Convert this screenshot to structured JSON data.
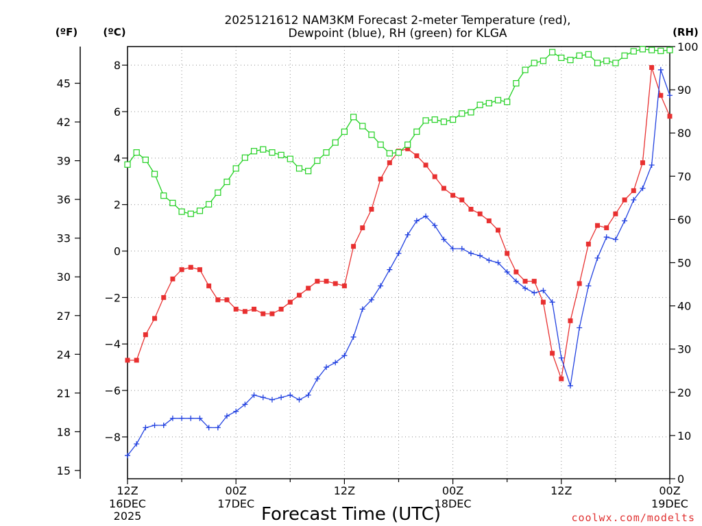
{
  "chart_data": {
    "type": "line",
    "title_line1": "2025121612 NAM3KM Forecast 2-meter Temperature (red),",
    "title_line2": "Dewpoint (blue), RH (green) for KLGA",
    "xlabel": "Forecast Time (UTC)",
    "credit": "coolwx.com/modelts",
    "units": {
      "fahrenheit": "(ºF)",
      "celsius": "(ºC)",
      "rh": "(RH)"
    },
    "x_hours_range": [
      0,
      60
    ],
    "celsius_range": [
      -9.8,
      8.8
    ],
    "rh_range": [
      0,
      100
    ],
    "celsius_ticks": [
      "8",
      "6",
      "4",
      "2",
      "0",
      "−2",
      "−4",
      "−6",
      "−8"
    ],
    "celsius_tick_values": [
      8,
      6,
      4,
      2,
      0,
      -2,
      -4,
      -6,
      -8
    ],
    "fahrenheit_ticks": [
      "45",
      "42",
      "39",
      "36",
      "33",
      "30",
      "27",
      "24",
      "21",
      "18",
      "15"
    ],
    "fahrenheit_tick_values": [
      45,
      42,
      39,
      36,
      33,
      30,
      27,
      24,
      21,
      18,
      15
    ],
    "rh_ticks": [
      "100",
      "90",
      "80",
      "70",
      "60",
      "50",
      "40",
      "30",
      "20",
      "10",
      "0"
    ],
    "rh_tick_values": [
      100,
      90,
      80,
      70,
      60,
      50,
      40,
      30,
      20,
      10,
      0
    ],
    "x_ticks": [
      {
        "hour": 0,
        "line1": "12Z",
        "line2": "16DEC",
        "line3": "2025"
      },
      {
        "hour": 12,
        "line1": "00Z",
        "line2": "17DEC",
        "line3": ""
      },
      {
        "hour": 24,
        "line1": "12Z",
        "line2": "",
        "line3": ""
      },
      {
        "hour": 36,
        "line1": "00Z",
        "line2": "18DEC",
        "line3": ""
      },
      {
        "hour": 48,
        "line1": "12Z",
        "line2": "",
        "line3": ""
      },
      {
        "hour": 60,
        "line1": "00Z",
        "line2": "19DEC",
        "line3": ""
      }
    ],
    "series": [
      {
        "name": "Temperature",
        "axis": "celsius",
        "color": "#e83030",
        "marker": "filled-square",
        "hours": [
          0,
          1,
          2,
          3,
          4,
          5,
          6,
          7,
          8,
          9,
          10,
          11,
          12,
          13,
          14,
          15,
          16,
          17,
          18,
          19,
          20,
          21,
          22,
          23,
          24,
          25,
          26,
          27,
          28,
          29,
          30,
          31,
          32,
          33,
          34,
          35,
          36,
          37,
          38,
          39,
          40,
          41,
          42,
          43,
          44,
          45,
          46,
          47,
          48,
          49,
          50,
          51,
          52,
          53,
          54,
          55,
          56,
          57,
          58,
          59,
          60
        ],
        "values": [
          -4.7,
          -4.7,
          -3.6,
          -2.9,
          -2.0,
          -1.2,
          -0.8,
          -0.7,
          -0.8,
          -1.5,
          -2.1,
          -2.1,
          -2.5,
          -2.6,
          -2.5,
          -2.7,
          -2.7,
          -2.5,
          -2.2,
          -1.9,
          -1.6,
          -1.3,
          -1.3,
          -1.4,
          -1.5,
          0.2,
          1.0,
          1.8,
          3.1,
          3.8,
          4.3,
          4.4,
          4.1,
          3.7,
          3.2,
          2.7,
          2.4,
          2.2,
          1.8,
          1.6,
          1.3,
          0.9,
          -0.1,
          -0.9,
          -1.3,
          -1.3,
          -2.2,
          -4.4,
          -5.5,
          -3.0,
          -1.4,
          0.3,
          1.1,
          1.0,
          1.6,
          2.2,
          2.6,
          3.8,
          7.9,
          6.7,
          5.8
        ]
      },
      {
        "name": "Dewpoint",
        "axis": "celsius",
        "color": "#2040e0",
        "marker": "plus",
        "hours": [
          0,
          1,
          2,
          3,
          4,
          5,
          6,
          7,
          8,
          9,
          10,
          11,
          12,
          13,
          14,
          15,
          16,
          17,
          18,
          19,
          20,
          21,
          22,
          23,
          24,
          25,
          26,
          27,
          28,
          29,
          30,
          31,
          32,
          33,
          34,
          35,
          36,
          37,
          38,
          39,
          40,
          41,
          42,
          43,
          44,
          45,
          46,
          47,
          48,
          49,
          50,
          51,
          52,
          53,
          54,
          55,
          56,
          57,
          58,
          59,
          60
        ],
        "values": [
          -8.8,
          -8.3,
          -7.6,
          -7.5,
          -7.5,
          -7.2,
          -7.2,
          -7.2,
          -7.2,
          -7.6,
          -7.6,
          -7.1,
          -6.9,
          -6.6,
          -6.2,
          -6.3,
          -6.4,
          -6.3,
          -6.2,
          -6.4,
          -6.2,
          -5.5,
          -5.0,
          -4.8,
          -4.5,
          -3.7,
          -2.5,
          -2.1,
          -1.5,
          -0.8,
          -0.1,
          0.7,
          1.3,
          1.5,
          1.1,
          0.5,
          0.1,
          0.1,
          -0.1,
          -0.2,
          -0.4,
          -0.5,
          -0.9,
          -1.3,
          -1.6,
          -1.8,
          -1.7,
          -2.2,
          -4.6,
          -5.8,
          -3.3,
          -1.5,
          -0.3,
          0.6,
          0.5,
          1.3,
          2.2,
          2.7,
          3.7,
          7.8,
          6.7
        ]
      },
      {
        "name": "RH",
        "axis": "rh",
        "color": "#20d020",
        "marker": "open-square",
        "hours": [
          0,
          1,
          2,
          3,
          4,
          5,
          6,
          7,
          8,
          9,
          10,
          11,
          12,
          13,
          14,
          15,
          16,
          17,
          18,
          19,
          20,
          21,
          22,
          23,
          24,
          25,
          26,
          27,
          28,
          29,
          30,
          31,
          32,
          33,
          34,
          35,
          36,
          37,
          38,
          39,
          40,
          41,
          42,
          43,
          44,
          45,
          46,
          47,
          48,
          49,
          50,
          51,
          52,
          53,
          54,
          55,
          56,
          57,
          58,
          59,
          60
        ],
        "values": [
          72.7,
          75.5,
          73.8,
          70.5,
          65.5,
          63.8,
          61.8,
          61.3,
          62.0,
          63.5,
          66.2,
          68.7,
          71.8,
          74.3,
          75.8,
          76.2,
          75.5,
          74.9,
          74.0,
          71.8,
          71.2,
          73.6,
          75.5,
          77.8,
          80.3,
          83.7,
          81.6,
          79.6,
          77.3,
          75.3,
          75.5,
          77.3,
          80.3,
          82.9,
          83.1,
          82.6,
          83.1,
          84.5,
          84.8,
          86.5,
          86.9,
          87.6,
          87.2,
          91.5,
          94.6,
          96.2,
          96.7,
          98.7,
          97.4,
          96.9,
          97.9,
          98.2,
          96.2,
          96.7,
          96.2,
          97.9,
          98.9,
          99.4,
          99.2,
          99.0,
          99.2
        ]
      }
    ]
  }
}
